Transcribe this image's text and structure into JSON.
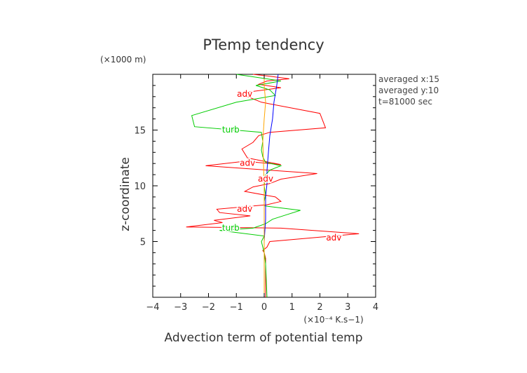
{
  "chart_data": {
    "type": "line",
    "title": "PTemp tendency",
    "xlabel": "Advection term of potential temp",
    "ylabel": "z-coordinate",
    "x_unit": "(×10⁻⁴ K.s−1)",
    "y_unit": "(×1000 m)",
    "xlim": [
      -4,
      4
    ],
    "ylim": [
      0,
      20
    ],
    "xticks": [
      "−4",
      "−3",
      "−2",
      "−1",
      "0",
      "1",
      "2",
      "3",
      "4"
    ],
    "yticks": [
      "5",
      "10",
      "15"
    ],
    "ytick_values": [
      5,
      10,
      15
    ],
    "info_lines": [
      "averaged  x:15",
      "averaged  y:10",
      "t=81000 sec"
    ],
    "grid": false,
    "series": [
      {
        "name": "adv",
        "color": "#ff0000",
        "points": [
          [
            0.05,
            0
          ],
          [
            0.05,
            3.5
          ],
          [
            0,
            4
          ],
          [
            -0.05,
            4.2
          ],
          [
            0.1,
            4.5
          ],
          [
            0.2,
            5.0
          ],
          [
            3.4,
            5.7
          ],
          [
            0.6,
            6.2
          ],
          [
            -2.8,
            6.3
          ],
          [
            -1.5,
            6.7
          ],
          [
            -1.8,
            6.9
          ],
          [
            -0.5,
            7.3
          ],
          [
            -1.6,
            7.6
          ],
          [
            -1.7,
            7.9
          ],
          [
            0.1,
            8.3
          ],
          [
            0.6,
            8.6
          ],
          [
            0.4,
            9.0
          ],
          [
            -0.7,
            9.5
          ],
          [
            -0.4,
            9.9
          ],
          [
            0.2,
            10.2
          ],
          [
            0.6,
            10.6
          ],
          [
            1.9,
            11.1
          ],
          [
            -2.1,
            11.8
          ],
          [
            -0.7,
            12.2
          ],
          [
            0.6,
            11.9
          ],
          [
            -0.6,
            12.5
          ],
          [
            -0.8,
            13.3
          ],
          [
            -0.4,
            13.9
          ],
          [
            -0.2,
            14.5
          ],
          [
            0.2,
            14.8
          ],
          [
            2.2,
            15.2
          ],
          [
            2.0,
            16.5
          ],
          [
            -0.1,
            17.5
          ],
          [
            -0.9,
            18.3
          ],
          [
            0.6,
            18.8
          ],
          [
            -0.2,
            19.1
          ],
          [
            0.1,
            19.4
          ],
          [
            0.9,
            19.6
          ],
          [
            0.3,
            19.8
          ],
          [
            -0.4,
            20
          ]
        ]
      },
      {
        "name": "turb",
        "color": "#00cc00",
        "points": [
          [
            0.1,
            0
          ],
          [
            0.05,
            3
          ],
          [
            0,
            4
          ],
          [
            -0.05,
            4.5
          ],
          [
            -0.1,
            5.0
          ],
          [
            0,
            5.5
          ],
          [
            -1.6,
            6.0
          ],
          [
            -0.4,
            6.2
          ],
          [
            0.05,
            6.6
          ],
          [
            0.3,
            7.0
          ],
          [
            0.8,
            7.4
          ],
          [
            1.3,
            7.8
          ],
          [
            0,
            8.2
          ],
          [
            0,
            8.6
          ],
          [
            0.05,
            9.2
          ],
          [
            0,
            10
          ],
          [
            0.05,
            11
          ],
          [
            0.2,
            11.4
          ],
          [
            0.6,
            11.8
          ],
          [
            0.05,
            12.1
          ],
          [
            -0.05,
            12.6
          ],
          [
            -0.1,
            13.2
          ],
          [
            -0.05,
            14.0
          ],
          [
            -0.1,
            14.8
          ],
          [
            -2.5,
            15.3
          ],
          [
            -2.6,
            16.3
          ],
          [
            -1.0,
            17.5
          ],
          [
            0.4,
            18.1
          ],
          [
            0.2,
            18.6
          ],
          [
            -0.3,
            19.0
          ],
          [
            0.6,
            19.4
          ],
          [
            -1.0,
            20
          ]
        ]
      },
      {
        "name": "",
        "color": "#0000ff",
        "points": [
          [
            0,
            0
          ],
          [
            0,
            3
          ],
          [
            0,
            5
          ],
          [
            0.05,
            7
          ],
          [
            0.05,
            9
          ],
          [
            0.1,
            10.2
          ],
          [
            0.1,
            11.4
          ],
          [
            0.15,
            13
          ],
          [
            0.2,
            14.5
          ],
          [
            0.3,
            16
          ],
          [
            0.35,
            17.5
          ],
          [
            0.45,
            19
          ],
          [
            0.5,
            20
          ]
        ]
      },
      {
        "name": "",
        "color": "#ffa500",
        "points": [
          [
            0,
            0
          ],
          [
            0,
            5
          ],
          [
            0,
            10
          ],
          [
            -0.05,
            14
          ],
          [
            0,
            16
          ],
          [
            0.05,
            17.5
          ],
          [
            0,
            19
          ],
          [
            0,
            20
          ]
        ]
      }
    ],
    "curve_labels": [
      {
        "text": "adv",
        "series": "adv",
        "x": -0.7,
        "y": 18.2
      },
      {
        "text": "turb",
        "series": "turb",
        "x": -1.2,
        "y": 15.0
      },
      {
        "text": "adv",
        "series": "adv",
        "x": -0.6,
        "y": 12.0
      },
      {
        "text": "adv",
        "series": "adv",
        "x": 0.05,
        "y": 10.6
      },
      {
        "text": "adv",
        "series": "adv",
        "x": -0.7,
        "y": 7.9
      },
      {
        "text": "turb",
        "series": "turb",
        "x": -1.2,
        "y": 6.2
      },
      {
        "text": "adv",
        "series": "adv",
        "x": 2.5,
        "y": 5.3
      }
    ]
  }
}
